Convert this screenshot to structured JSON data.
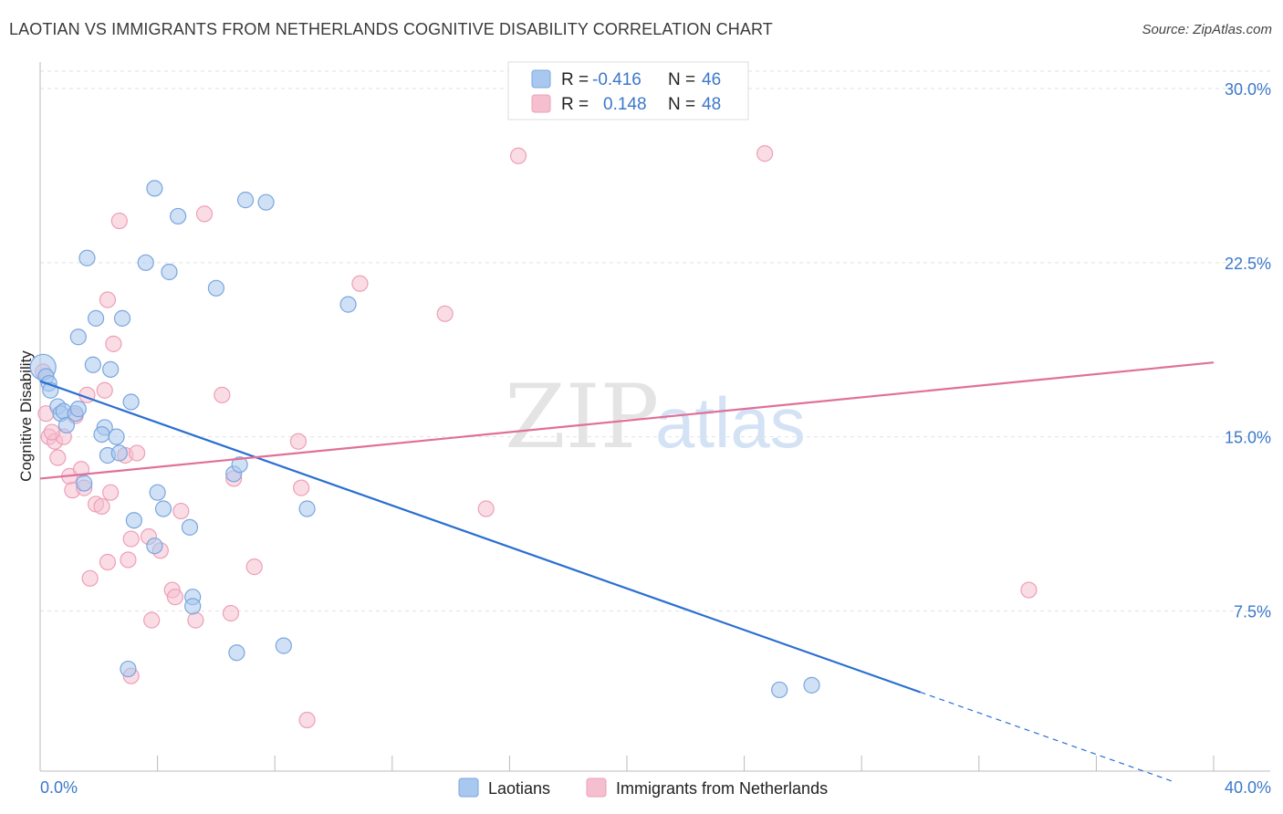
{
  "header": {
    "title": "LAOTIAN VS IMMIGRANTS FROM NETHERLANDS COGNITIVE DISABILITY CORRELATION CHART",
    "source": "Source: ZipAtlas.com"
  },
  "watermark": {
    "zip": "ZIP",
    "atlas": "atlas"
  },
  "colors": {
    "laotian_fill": "#a9c8ef",
    "laotian_stroke": "#7aa6de",
    "laotian_line": "#2a6fd1",
    "netherlands_fill": "#f5bfd0",
    "netherlands_stroke": "#ee9fb8",
    "netherlands_line": "#e0709a",
    "tick_text": "#3b78c9"
  },
  "legend": {
    "rows": [
      {
        "r_label": "R =",
        "r_value": "-0.416",
        "n_label": "N =",
        "n_value": "46"
      },
      {
        "r_label": "R =",
        "r_value": "0.148",
        "n_label": "N =",
        "n_value": "48"
      }
    ]
  },
  "bottom_legend": {
    "items": [
      {
        "label": "Laotians"
      },
      {
        "label": "Immigrants from Netherlands"
      }
    ]
  },
  "chart_data": {
    "type": "scatter",
    "title": "LAOTIAN VS IMMIGRANTS FROM NETHERLANDS COGNITIVE DISABILITY CORRELATION CHART",
    "xlabel": "",
    "ylabel": "Cognitive Disability",
    "xlim": [
      0,
      40
    ],
    "ylim": [
      0,
      30.5
    ],
    "x_tick_labels": [
      "0.0%",
      "40.0%"
    ],
    "y_ticks": [
      7.5,
      15.0,
      22.5,
      30.0
    ],
    "y_tick_labels": [
      "7.5%",
      "15.0%",
      "22.5%",
      "30.0%"
    ],
    "grid": "horizontal dashed",
    "legend_position": "top-center",
    "series": [
      {
        "name": "Laotians",
        "r": -0.416,
        "n": 46,
        "trend": {
          "x0": 0.0,
          "y0": 17.4,
          "x1": 30.0,
          "y1": 4.0,
          "dashed_to_x": 38.6
        },
        "points": [
          [
            0.1,
            18.0
          ],
          [
            0.2,
            17.6
          ],
          [
            0.3,
            17.3
          ],
          [
            0.35,
            17.0
          ],
          [
            0.6,
            16.3
          ],
          [
            0.7,
            16.0
          ],
          [
            0.8,
            16.1
          ],
          [
            0.9,
            15.5
          ],
          [
            1.2,
            16.0
          ],
          [
            1.3,
            16.2
          ],
          [
            1.5,
            13.0
          ],
          [
            1.6,
            22.7
          ],
          [
            1.8,
            18.1
          ],
          [
            1.9,
            20.1
          ],
          [
            1.3,
            19.3
          ],
          [
            2.2,
            15.4
          ],
          [
            2.1,
            15.1
          ],
          [
            2.4,
            17.9
          ],
          [
            2.6,
            15.0
          ],
          [
            2.3,
            14.2
          ],
          [
            2.7,
            14.3
          ],
          [
            2.8,
            20.1
          ],
          [
            3.1,
            16.5
          ],
          [
            3.2,
            11.4
          ],
          [
            3.6,
            22.5
          ],
          [
            3.9,
            25.7
          ],
          [
            3.9,
            10.3
          ],
          [
            4.0,
            12.6
          ],
          [
            4.2,
            11.9
          ],
          [
            4.4,
            22.1
          ],
          [
            4.7,
            24.5
          ],
          [
            5.1,
            11.1
          ],
          [
            5.2,
            8.1
          ],
          [
            5.2,
            7.7
          ],
          [
            6.0,
            21.4
          ],
          [
            6.6,
            13.4
          ],
          [
            6.7,
            5.7
          ],
          [
            6.8,
            13.8
          ],
          [
            7.0,
            25.2
          ],
          [
            7.7,
            25.1
          ],
          [
            8.3,
            6.0
          ],
          [
            9.1,
            11.9
          ],
          [
            10.5,
            20.7
          ],
          [
            3.0,
            5.0
          ],
          [
            25.2,
            4.1
          ],
          [
            26.3,
            4.3
          ]
        ]
      },
      {
        "name": "Immigrants from Netherlands",
        "r": 0.148,
        "n": 48,
        "trend": {
          "x0": 0.0,
          "y0": 13.2,
          "x1": 40.0,
          "y1": 18.2
        },
        "points": [
          [
            0.1,
            17.8
          ],
          [
            0.2,
            16.0
          ],
          [
            0.3,
            15.0
          ],
          [
            0.5,
            14.8
          ],
          [
            0.6,
            14.1
          ],
          [
            0.8,
            15.0
          ],
          [
            1.0,
            13.3
          ],
          [
            1.1,
            12.7
          ],
          [
            1.2,
            15.9
          ],
          [
            1.4,
            13.6
          ],
          [
            1.5,
            12.8
          ],
          [
            1.6,
            16.8
          ],
          [
            1.7,
            8.9
          ],
          [
            1.9,
            12.1
          ],
          [
            2.1,
            12.0
          ],
          [
            2.2,
            17.0
          ],
          [
            2.3,
            20.9
          ],
          [
            2.3,
            9.6
          ],
          [
            2.4,
            12.6
          ],
          [
            2.5,
            19.0
          ],
          [
            2.7,
            24.3
          ],
          [
            2.9,
            14.2
          ],
          [
            3.0,
            9.7
          ],
          [
            3.1,
            4.7
          ],
          [
            3.1,
            10.6
          ],
          [
            3.3,
            14.3
          ],
          [
            3.7,
            10.7
          ],
          [
            3.8,
            7.1
          ],
          [
            4.1,
            10.1
          ],
          [
            4.5,
            8.4
          ],
          [
            4.6,
            8.1
          ],
          [
            4.8,
            11.8
          ],
          [
            5.3,
            7.1
          ],
          [
            5.6,
            24.6
          ],
          [
            6.2,
            16.8
          ],
          [
            6.5,
            7.4
          ],
          [
            6.6,
            13.2
          ],
          [
            7.3,
            9.4
          ],
          [
            8.8,
            14.8
          ],
          [
            8.9,
            12.8
          ],
          [
            9.1,
            2.8
          ],
          [
            10.9,
            21.6
          ],
          [
            13.8,
            20.3
          ],
          [
            15.2,
            11.9
          ],
          [
            16.3,
            27.1
          ],
          [
            24.7,
            27.2
          ],
          [
            33.7,
            8.4
          ],
          [
            0.4,
            15.2
          ]
        ]
      }
    ]
  }
}
